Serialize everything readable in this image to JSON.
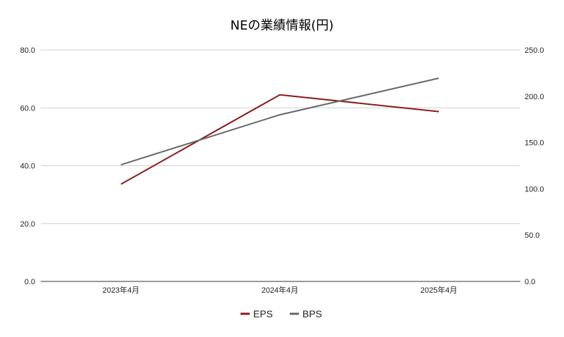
{
  "chart_data": {
    "type": "line",
    "title": "NEの業績情報(円)",
    "categories": [
      "2023年4月",
      "2024年4月",
      "2025年4月"
    ],
    "series": [
      {
        "name": "EPS",
        "axis": "left",
        "color": "#8b1a1a",
        "values": [
          33.6,
          64.5,
          58.7
        ]
      },
      {
        "name": "BPS",
        "axis": "right",
        "color": "#666666",
        "values": [
          126.0,
          180.0,
          219.5
        ]
      }
    ],
    "y_left": {
      "ylim": [
        0,
        80
      ],
      "ticks": [
        "0.0",
        "20.0",
        "40.0",
        "60.0",
        "80.0"
      ]
    },
    "y_right": {
      "ylim": [
        0,
        250
      ],
      "ticks": [
        "0.0",
        "50.0",
        "100.0",
        "150.0",
        "200.0",
        "250.0"
      ]
    },
    "grid": true,
    "legend_position": "bottom"
  }
}
